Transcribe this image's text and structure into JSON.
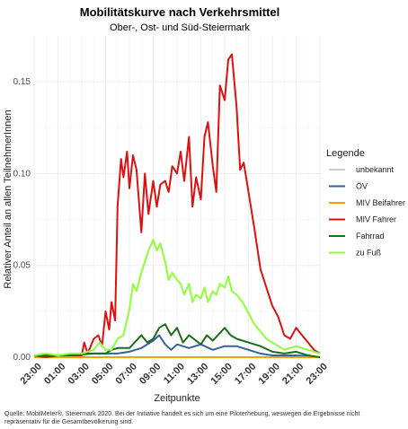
{
  "chart_data": {
    "type": "line",
    "title": "Mobilitätskurve nach Verkehrsmittel",
    "subtitle": "Ober-, Ost- und Süd-Steiermark",
    "xlabel": "Zeitpunkte",
    "ylabel": "Relativer Anteil an allen TeilnehmerInnen",
    "x_ticks": [
      "23:00",
      "01:00",
      "03:00",
      "05:00",
      "07:00",
      "09:00",
      "11:00",
      "13:00",
      "15:00",
      "17:00",
      "19:00",
      "21:00",
      "23:00"
    ],
    "xlim": [
      -1,
      23
    ],
    "y_ticks": [
      "0.00",
      "0.05",
      "0.10",
      "0.15"
    ],
    "ylim": [
      0,
      0.175
    ],
    "grid": true,
    "legend": {
      "title": "Legende",
      "placement": "right"
    },
    "series": [
      {
        "name": "unbekannt",
        "color": "#cccccc",
        "points": [
          [
            -1,
            0.0
          ],
          [
            5,
            0.0
          ],
          [
            10,
            0.0
          ],
          [
            15,
            0.0
          ],
          [
            20,
            0.0
          ],
          [
            23,
            0.0
          ]
        ]
      },
      {
        "name": "ÖV",
        "color": "#3a5fa0",
        "points": [
          [
            -1,
            0.001
          ],
          [
            2,
            0.001
          ],
          [
            3.5,
            0.002
          ],
          [
            5,
            0.002
          ],
          [
            6,
            0.002
          ],
          [
            7,
            0.003
          ],
          [
            8,
            0.005
          ],
          [
            9,
            0.009
          ],
          [
            9.5,
            0.012
          ],
          [
            10,
            0.007
          ],
          [
            10.5,
            0.004
          ],
          [
            11,
            0.007
          ],
          [
            12,
            0.005
          ],
          [
            13,
            0.007
          ],
          [
            14,
            0.004
          ],
          [
            15,
            0.006
          ],
          [
            16,
            0.006
          ],
          [
            17,
            0.004
          ],
          [
            18,
            0.002
          ],
          [
            19,
            0.001
          ],
          [
            21,
            0.001
          ],
          [
            23,
            0.0
          ]
        ]
      },
      {
        "name": "MIV Beifahrer",
        "color": "#f5a200",
        "points": [
          [
            -1,
            0.0
          ],
          [
            5,
            0.0
          ],
          [
            10,
            0.0
          ],
          [
            15,
            0.0
          ],
          [
            20,
            0.0
          ],
          [
            23,
            0.0
          ]
        ]
      },
      {
        "name": "MIV Fahrer",
        "color": "#dd1111",
        "points": [
          [
            -1,
            0.001
          ],
          [
            0,
            0.0
          ],
          [
            1,
            0.001
          ],
          [
            2,
            0.001
          ],
          [
            3,
            0.001
          ],
          [
            3.2,
            0.008
          ],
          [
            3.5,
            0.002
          ],
          [
            4,
            0.01
          ],
          [
            4.4,
            0.012
          ],
          [
            4.7,
            0.006
          ],
          [
            5,
            0.025
          ],
          [
            5.3,
            0.015
          ],
          [
            5.5,
            0.03
          ],
          [
            5.8,
            0.02
          ],
          [
            6,
            0.082
          ],
          [
            6.3,
            0.108
          ],
          [
            6.5,
            0.098
          ],
          [
            6.8,
            0.112
          ],
          [
            7,
            0.092
          ],
          [
            7.3,
            0.11
          ],
          [
            7.6,
            0.102
          ],
          [
            8,
            0.068
          ],
          [
            8.3,
            0.1
          ],
          [
            8.6,
            0.078
          ],
          [
            9,
            0.096
          ],
          [
            9.3,
            0.082
          ],
          [
            9.6,
            0.094
          ],
          [
            10,
            0.096
          ],
          [
            10.3,
            0.09
          ],
          [
            10.6,
            0.104
          ],
          [
            11,
            0.1
          ],
          [
            11.3,
            0.112
          ],
          [
            11.6,
            0.096
          ],
          [
            12,
            0.12
          ],
          [
            12.3,
            0.082
          ],
          [
            12.6,
            0.098
          ],
          [
            13,
            0.086
          ],
          [
            13.3,
            0.12
          ],
          [
            13.6,
            0.128
          ],
          [
            14,
            0.104
          ],
          [
            14.3,
            0.09
          ],
          [
            14.6,
            0.148
          ],
          [
            15,
            0.14
          ],
          [
            15.3,
            0.162
          ],
          [
            15.6,
            0.165
          ],
          [
            16,
            0.136
          ],
          [
            16.3,
            0.102
          ],
          [
            16.6,
            0.106
          ],
          [
            17,
            0.09
          ],
          [
            17.5,
            0.07
          ],
          [
            18,
            0.048
          ],
          [
            18.5,
            0.038
          ],
          [
            19,
            0.028
          ],
          [
            19.5,
            0.022
          ],
          [
            20,
            0.012
          ],
          [
            20.5,
            0.01
          ],
          [
            21,
            0.016
          ],
          [
            21.5,
            0.012
          ],
          [
            22,
            0.008
          ],
          [
            22.5,
            0.004
          ],
          [
            23,
            0.002
          ]
        ]
      },
      {
        "name": "Fahrrad",
        "color": "#1a6e1a",
        "points": [
          [
            -1,
            0.001
          ],
          [
            2,
            0.001
          ],
          [
            4,
            0.002
          ],
          [
            5,
            0.002
          ],
          [
            5.5,
            0.004
          ],
          [
            6,
            0.005
          ],
          [
            7,
            0.005
          ],
          [
            8,
            0.012
          ],
          [
            8.5,
            0.008
          ],
          [
            9,
            0.01
          ],
          [
            9.5,
            0.016
          ],
          [
            10,
            0.018
          ],
          [
            10.5,
            0.012
          ],
          [
            11,
            0.016
          ],
          [
            11.5,
            0.008
          ],
          [
            12,
            0.012
          ],
          [
            13,
            0.007
          ],
          [
            13.5,
            0.012
          ],
          [
            14,
            0.009
          ],
          [
            15,
            0.016
          ],
          [
            15.5,
            0.012
          ],
          [
            16,
            0.01
          ],
          [
            17,
            0.008
          ],
          [
            18,
            0.006
          ],
          [
            19,
            0.003
          ],
          [
            20,
            0.002
          ],
          [
            21,
            0.003
          ],
          [
            22,
            0.001
          ],
          [
            23,
            0.0
          ]
        ]
      },
      {
        "name": "zu Fuß",
        "color": "#8fff3a",
        "points": [
          [
            -1,
            0.001
          ],
          [
            0,
            0.002
          ],
          [
            1,
            0.001
          ],
          [
            2,
            0.002
          ],
          [
            3,
            0.002
          ],
          [
            4,
            0.004
          ],
          [
            4.5,
            0.008
          ],
          [
            5,
            0.004
          ],
          [
            5.5,
            0.004
          ],
          [
            6,
            0.01
          ],
          [
            6.5,
            0.012
          ],
          [
            7,
            0.026
          ],
          [
            7.3,
            0.04
          ],
          [
            7.6,
            0.036
          ],
          [
            8,
            0.046
          ],
          [
            8.3,
            0.052
          ],
          [
            8.6,
            0.058
          ],
          [
            9,
            0.064
          ],
          [
            9.3,
            0.058
          ],
          [
            9.6,
            0.062
          ],
          [
            10,
            0.052
          ],
          [
            10.3,
            0.042
          ],
          [
            10.6,
            0.046
          ],
          [
            11,
            0.042
          ],
          [
            11.3,
            0.04
          ],
          [
            11.6,
            0.034
          ],
          [
            12,
            0.04
          ],
          [
            12.3,
            0.03
          ],
          [
            12.6,
            0.034
          ],
          [
            13,
            0.032
          ],
          [
            13.3,
            0.038
          ],
          [
            13.6,
            0.03
          ],
          [
            14,
            0.036
          ],
          [
            14.3,
            0.034
          ],
          [
            14.6,
            0.04
          ],
          [
            15,
            0.038
          ],
          [
            15.3,
            0.044
          ],
          [
            15.6,
            0.036
          ],
          [
            16,
            0.034
          ],
          [
            16.5,
            0.03
          ],
          [
            17,
            0.024
          ],
          [
            17.5,
            0.018
          ],
          [
            18,
            0.014
          ],
          [
            18.5,
            0.01
          ],
          [
            19,
            0.008
          ],
          [
            19.5,
            0.006
          ],
          [
            20,
            0.004
          ],
          [
            21,
            0.006
          ],
          [
            22,
            0.004
          ],
          [
            23,
            0.002
          ]
        ]
      }
    ]
  },
  "footnote_lines": [
    "Quelle: MobilMeter®, Steiermark 2020. Bei der Initiative handelt es sich um eine Pilot­erhebung, weswegen die Ergebnisse nicht",
    "repräsentativ für die Gesamtbevölkerung sind."
  ]
}
